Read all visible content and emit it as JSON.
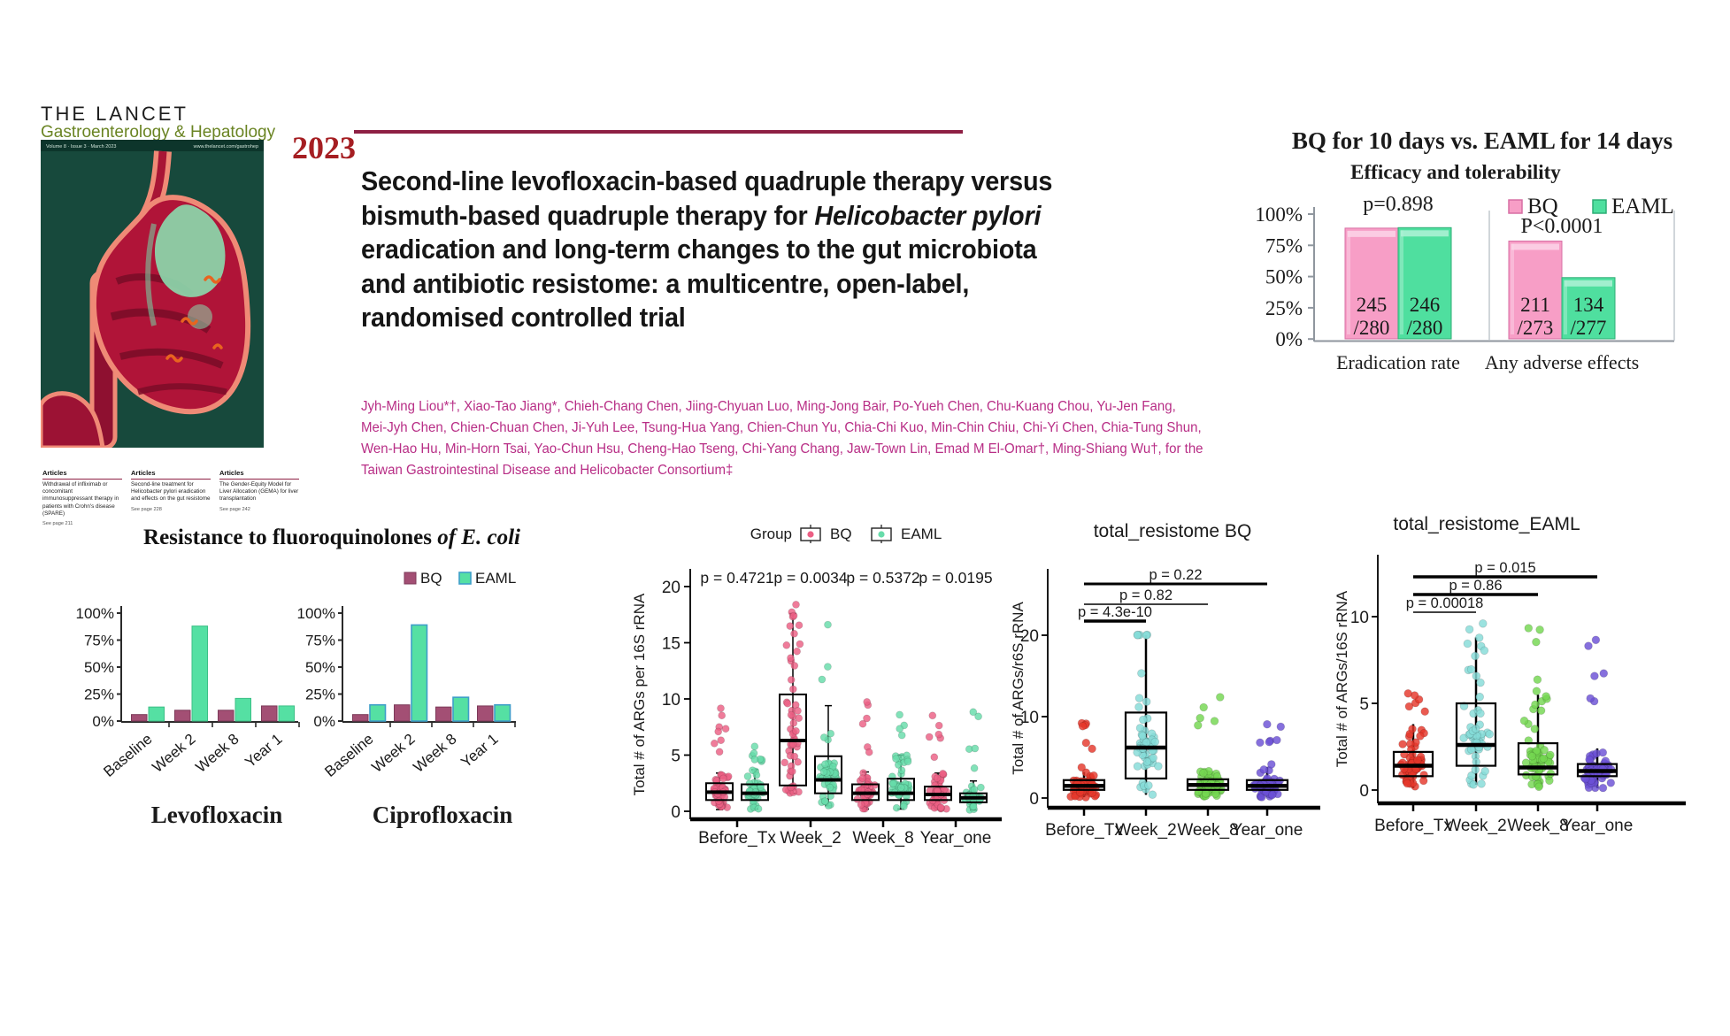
{
  "journal": {
    "name_line1": "THE LANCET",
    "name_line2": "Gastroenterology & Hepatology",
    "cover_strip_left": "Volume 8 · Issue 3 · March 2023",
    "cover_strip_right": "www.thelancet.com/gastrohep",
    "articles": [
      {
        "heading": "Articles",
        "text": "Withdrawal of infliximab or concomitant immunosuppressant therapy in patients with Crohn's disease (SPARE)",
        "page": "See page 211"
      },
      {
        "heading": "Articles",
        "text": "Second-line treatment for Helicobacter pylori eradication and effects on the gut resistome",
        "page": "See page 228"
      },
      {
        "heading": "Articles",
        "text": "The Gender-Equity Model for Liver Allocation (GEMA) for liver transplantation",
        "page": "See page 242"
      }
    ]
  },
  "paper": {
    "year": "2023",
    "title_lines": [
      [
        {
          "t": "Second-line levofloxacin-based quadruple therapy versus"
        }
      ],
      [
        {
          "t": "bismuth-based quadruple therapy for "
        },
        {
          "t": "Helicobacter pylori",
          "i": true
        }
      ],
      [
        {
          "t": "eradication and long-term changes to the gut microbiota"
        }
      ],
      [
        {
          "t": "and antibiotic resistome: a multicentre, open-label,"
        }
      ],
      [
        {
          "t": "randomised controlled trial"
        }
      ]
    ],
    "author_lines": [
      "Jyh-Ming Liou*†, Xiao-Tao Jiang*, Chieh-Chang Chen, Jiing-Chyuan Luo, Ming-Jong Bair, Po-Yueh Chen, Chu-Kuang Chou, Yu-Jen Fang,",
      "Mei-Jyh Chen, Chien-Chuan Chen, Ji-Yuh Lee, Tsung-Hua Yang, Chien-Chun Yu, Chia-Chi Kuo, Min-Chin Chiu, Chi-Yi Chen, Chia-Tung Shun,",
      "Wen-Hao Hu, Min-Horn Tsai, Yao-Chun Hsu, Cheng-Hao Tseng, Chi-Yang Chang, Jaw-Town Lin, Emad M El-Omar†, Ming-Shiang Wu†, for the",
      "Taiwan Gastrointestinal Disease and Helicobacter Consortium‡"
    ]
  },
  "colors": {
    "accent_rule": "#8e2044",
    "year_red": "#a51e22",
    "authors_magenta": "#b82e86",
    "journal_green": "#6a8423"
  },
  "chart_data": [
    {
      "name": "efficacy",
      "type": "bar",
      "title": "BQ for 10 days  vs.  EAML for 14 days",
      "subtitle": "Efficacy and tolerability",
      "ylim": [
        0,
        100
      ],
      "yticks": [
        "100%",
        "75%",
        "50%",
        "25%",
        "0%"
      ],
      "series": [
        {
          "name": "BQ",
          "fill": "#f79ec6",
          "edge": "#d76fa4",
          "light": "#fcd3e7"
        },
        {
          "name": "EAML",
          "fill": "#4fdf9f",
          "edge": "#2fae76",
          "light": "#aff2d6"
        }
      ],
      "groups": [
        {
          "label": "Eradication rate",
          "p": "p=0.898",
          "values": [
            87.5,
            87.9
          ],
          "labels": [
            [
              "245",
              "/280"
            ],
            [
              "246",
              "/280"
            ]
          ]
        },
        {
          "label": "Any adverse effects",
          "p": "P<0.0001",
          "values": [
            77.3,
            48.4
          ],
          "labels": [
            [
              "211",
              "/273"
            ],
            [
              "134",
              "/277"
            ]
          ]
        }
      ]
    },
    {
      "name": "resistance",
      "type": "bar",
      "title_main": "Resistance to fluoroquinolones ",
      "title_italic": "of E. coli",
      "categories": [
        "Baseline",
        "Week 2",
        "Week 8",
        "Year 1"
      ],
      "ylim": [
        0,
        100
      ],
      "yticks": [
        "100%",
        "75%",
        "50%",
        "25%",
        "0%"
      ],
      "legend": [
        "BQ",
        "EAML"
      ],
      "series_colors": {
        "BQ": {
          "fill": "#a34f74",
          "edge": "#7c3a59"
        },
        "EAML": {
          "fill": "#55e0a3",
          "edge": "#3e9ec9"
        }
      },
      "charts": [
        {
          "label": "Levofloxacin",
          "BQ": [
            6,
            10,
            10,
            14
          ],
          "EAML": [
            13,
            88,
            21,
            14
          ],
          "stroke_eaml": false
        },
        {
          "label": "Ciprofloxacin",
          "BQ": [
            6,
            15,
            13,
            14
          ],
          "EAML": [
            15,
            89,
            22,
            15
          ],
          "stroke_eaml": true
        }
      ]
    },
    {
      "name": "arg_by_group",
      "type": "boxplot",
      "legend_title": "Group",
      "legend": [
        {
          "label": "BQ",
          "color": "#ec5f84"
        },
        {
          "label": "EAML",
          "color": "#67dcaa"
        }
      ],
      "p_row": [
        "p = 0.4721",
        "p = 0.0034",
        "p = 0.5372",
        "p = 0.0195"
      ],
      "ylabel": "Total # of ARGs per 16S  rRNA",
      "yticks": [
        0,
        5,
        10,
        15,
        20
      ],
      "categories": [
        "Before_Tx",
        "Week_2",
        "Week_8",
        "Year_one"
      ],
      "boxes": [
        {
          "cat": "Before_Tx",
          "series": "BQ",
          "q1": 1.0,
          "med": 1.7,
          "q3": 2.5,
          "wlo": 0.15,
          "whi": 3.4,
          "pmax": 9.3,
          "n": 62
        },
        {
          "cat": "Before_Tx",
          "series": "EAML",
          "q1": 1.0,
          "med": 1.6,
          "q3": 2.4,
          "wlo": 0.2,
          "whi": 3.7,
          "pmax": 5.8,
          "n": 58
        },
        {
          "cat": "Week_2",
          "series": "BQ",
          "q1": 2.3,
          "med": 6.3,
          "q3": 10.4,
          "wlo": 1.6,
          "whi": 17.6,
          "pmax": 20.0,
          "n": 52
        },
        {
          "cat": "Week_2",
          "series": "EAML",
          "q1": 1.6,
          "med": 2.8,
          "q3": 4.9,
          "wlo": 0.5,
          "whi": 9.4,
          "pmax": 18.4,
          "n": 50
        },
        {
          "cat": "Week_8",
          "series": "BQ",
          "q1": 1.0,
          "med": 1.6,
          "q3": 2.4,
          "wlo": 0.2,
          "whi": 3.5,
          "pmax": 9.8,
          "n": 60
        },
        {
          "cat": "Week_8",
          "series": "EAML",
          "q1": 1.0,
          "med": 1.6,
          "q3": 2.9,
          "wlo": 0.2,
          "whi": 5.0,
          "pmax": 9.0,
          "n": 58
        },
        {
          "cat": "Year_one",
          "series": "BQ",
          "q1": 1.0,
          "med": 1.5,
          "q3": 2.2,
          "wlo": 0.2,
          "whi": 3.4,
          "pmax": 9.6,
          "n": 62
        },
        {
          "cat": "Year_one",
          "series": "EAML",
          "q1": 0.8,
          "med": 1.2,
          "q3": 1.6,
          "wlo": 0.1,
          "whi": 2.7,
          "pmax": 9.0,
          "n": 58
        }
      ]
    },
    {
      "name": "total_resistome_BQ",
      "type": "boxplot",
      "title": "total_resistome BQ",
      "ylabel": "Total # of ARGs/r6S rRNA",
      "yticks": [
        0,
        10,
        20
      ],
      "categories": [
        "Before_Tx",
        "Week_2",
        "Week_8",
        "Year_one"
      ],
      "colors": [
        "#e5372b",
        "#85dcd8",
        "#74d751",
        "#6b50d6"
      ],
      "boxes": [
        {
          "q1": 1.0,
          "med": 1.5,
          "q3": 2.2,
          "wlo": 0.1,
          "whi": 3.2,
          "pmax": 9.4,
          "n": 88
        },
        {
          "q1": 2.4,
          "med": 6.2,
          "q3": 10.5,
          "wlo": 0.4,
          "whi": 20.0,
          "pmax": 20.0,
          "n": 55
        },
        {
          "q1": 1.0,
          "med": 1.6,
          "q3": 2.3,
          "wlo": 0.1,
          "whi": 3.3,
          "pmax": 13.5,
          "n": 85
        },
        {
          "q1": 1.0,
          "med": 1.5,
          "q3": 2.2,
          "wlo": 0.1,
          "whi": 3.8,
          "pmax": 9.5,
          "n": 80
        }
      ],
      "significance": [
        {
          "label": "p = 0.22",
          "from": 0,
          "to": 3,
          "thick": 3
        },
        {
          "label": "p = 0.82",
          "from": 0,
          "to": 2,
          "thick": 1.5
        },
        {
          "label": "p = 4.3e-10",
          "from": 0,
          "to": 1,
          "thick": 3.5
        }
      ]
    },
    {
      "name": "total_resistome_EAML",
      "type": "boxplot",
      "title": "total_resistome_EAML",
      "ylabel": "Total # of ARGs/16S rRNA",
      "yticks": [
        0,
        5,
        10
      ],
      "categories": [
        "Before_Tx",
        "Week_2",
        "Week_8",
        "Year_one"
      ],
      "colors": [
        "#e5372b",
        "#85dcd8",
        "#74d751",
        "#6b50d6"
      ],
      "boxes": [
        {
          "q1": 0.8,
          "med": 1.4,
          "q3": 2.2,
          "wlo": 0.1,
          "whi": 3.8,
          "pmax": 5.6,
          "n": 72
        },
        {
          "q1": 1.4,
          "med": 2.6,
          "q3": 5.0,
          "wlo": 0.3,
          "whi": 8.8,
          "pmax": 9.7,
          "n": 55
        },
        {
          "q1": 0.9,
          "med": 1.3,
          "q3": 2.7,
          "wlo": 0.1,
          "whi": 5.5,
          "pmax": 10.4,
          "n": 70
        },
        {
          "q1": 0.8,
          "med": 1.1,
          "q3": 1.5,
          "wlo": 0.1,
          "whi": 2.4,
          "pmax": 9.0,
          "n": 75
        }
      ],
      "significance": [
        {
          "label": "p = 0.015",
          "from": 0,
          "to": 3,
          "thick": 3.5
        },
        {
          "label": "p = 0.86",
          "from": 0,
          "to": 2,
          "thick": 3.5
        },
        {
          "label": "p = 0.00018",
          "from": 0,
          "to": 1,
          "thick": 1.5
        }
      ]
    }
  ]
}
